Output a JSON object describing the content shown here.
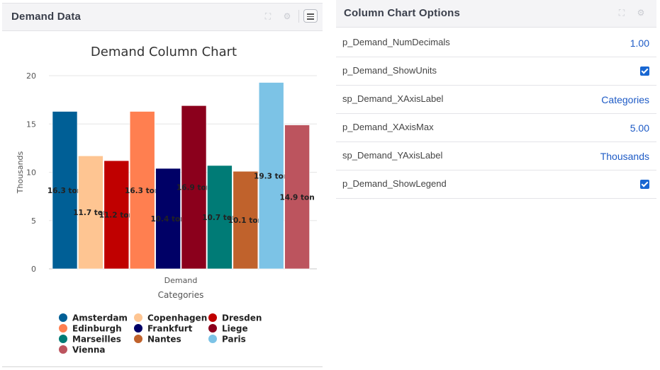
{
  "left_panel": {
    "title": "Demand Data"
  },
  "right_panel": {
    "title": "Column Chart Options",
    "options": [
      {
        "label": "p_Demand_NumDecimals",
        "value": "1.00",
        "type": "number"
      },
      {
        "label": "p_Demand_ShowUnits",
        "checked": true,
        "type": "checkbox"
      },
      {
        "label": "sp_Demand_XAxisLabel",
        "value": "Categories",
        "type": "text"
      },
      {
        "label": "p_Demand_XAxisMax",
        "value": "5.00",
        "type": "number"
      },
      {
        "label": "sp_Demand_YAxisLabel",
        "value": "Thousands",
        "type": "text"
      },
      {
        "label": "p_Demand_ShowLegend",
        "checked": true,
        "type": "checkbox"
      }
    ]
  },
  "icons": {
    "expand": "expand-icon",
    "settings": "gear-icon",
    "menu": "hamburger-menu-icon",
    "check": "checkbox-checked-icon"
  },
  "colors": {
    "accent": "#1967d2",
    "link": "#1e5bc6"
  },
  "chart_data": {
    "type": "bar",
    "title": "Demand Column Chart",
    "xlabel": "Categories",
    "ylabel": "Thousands",
    "categories": [
      "Demand"
    ],
    "ylim": [
      0,
      20
    ],
    "yticks": [
      0,
      5,
      10,
      15,
      20
    ],
    "grid": true,
    "legend": "bottom",
    "unit_suffix": " ton",
    "series": [
      {
        "name": "Amsterdam",
        "value": 16.3,
        "label": "16.3 ton",
        "color": "#005f96"
      },
      {
        "name": "Copenhagen",
        "value": 11.7,
        "label": "11.7 ton",
        "color": "#fec592"
      },
      {
        "name": "Dresden",
        "value": 11.2,
        "label": "11.2 ton",
        "color": "#c00000"
      },
      {
        "name": "Edinburgh",
        "value": 16.3,
        "label": "16.3 ton",
        "color": "#ff7f50"
      },
      {
        "name": "Frankfurt",
        "value": 10.4,
        "label": "10.4 ton",
        "color": "#000066"
      },
      {
        "name": "Liege",
        "value": 16.9,
        "label": "16.9 ton",
        "color": "#8b001c"
      },
      {
        "name": "Marseilles",
        "value": 10.7,
        "label": "10.7 ton",
        "color": "#007b76"
      },
      {
        "name": "Nantes",
        "value": 10.1,
        "label": "10.1 ton",
        "color": "#c0622c"
      },
      {
        "name": "Paris",
        "value": 19.3,
        "label": "19.3 ton",
        "color": "#7cc3e6"
      },
      {
        "name": "Vienna",
        "value": 14.9,
        "label": "14.9 ton",
        "color": "#bc545e"
      }
    ]
  }
}
